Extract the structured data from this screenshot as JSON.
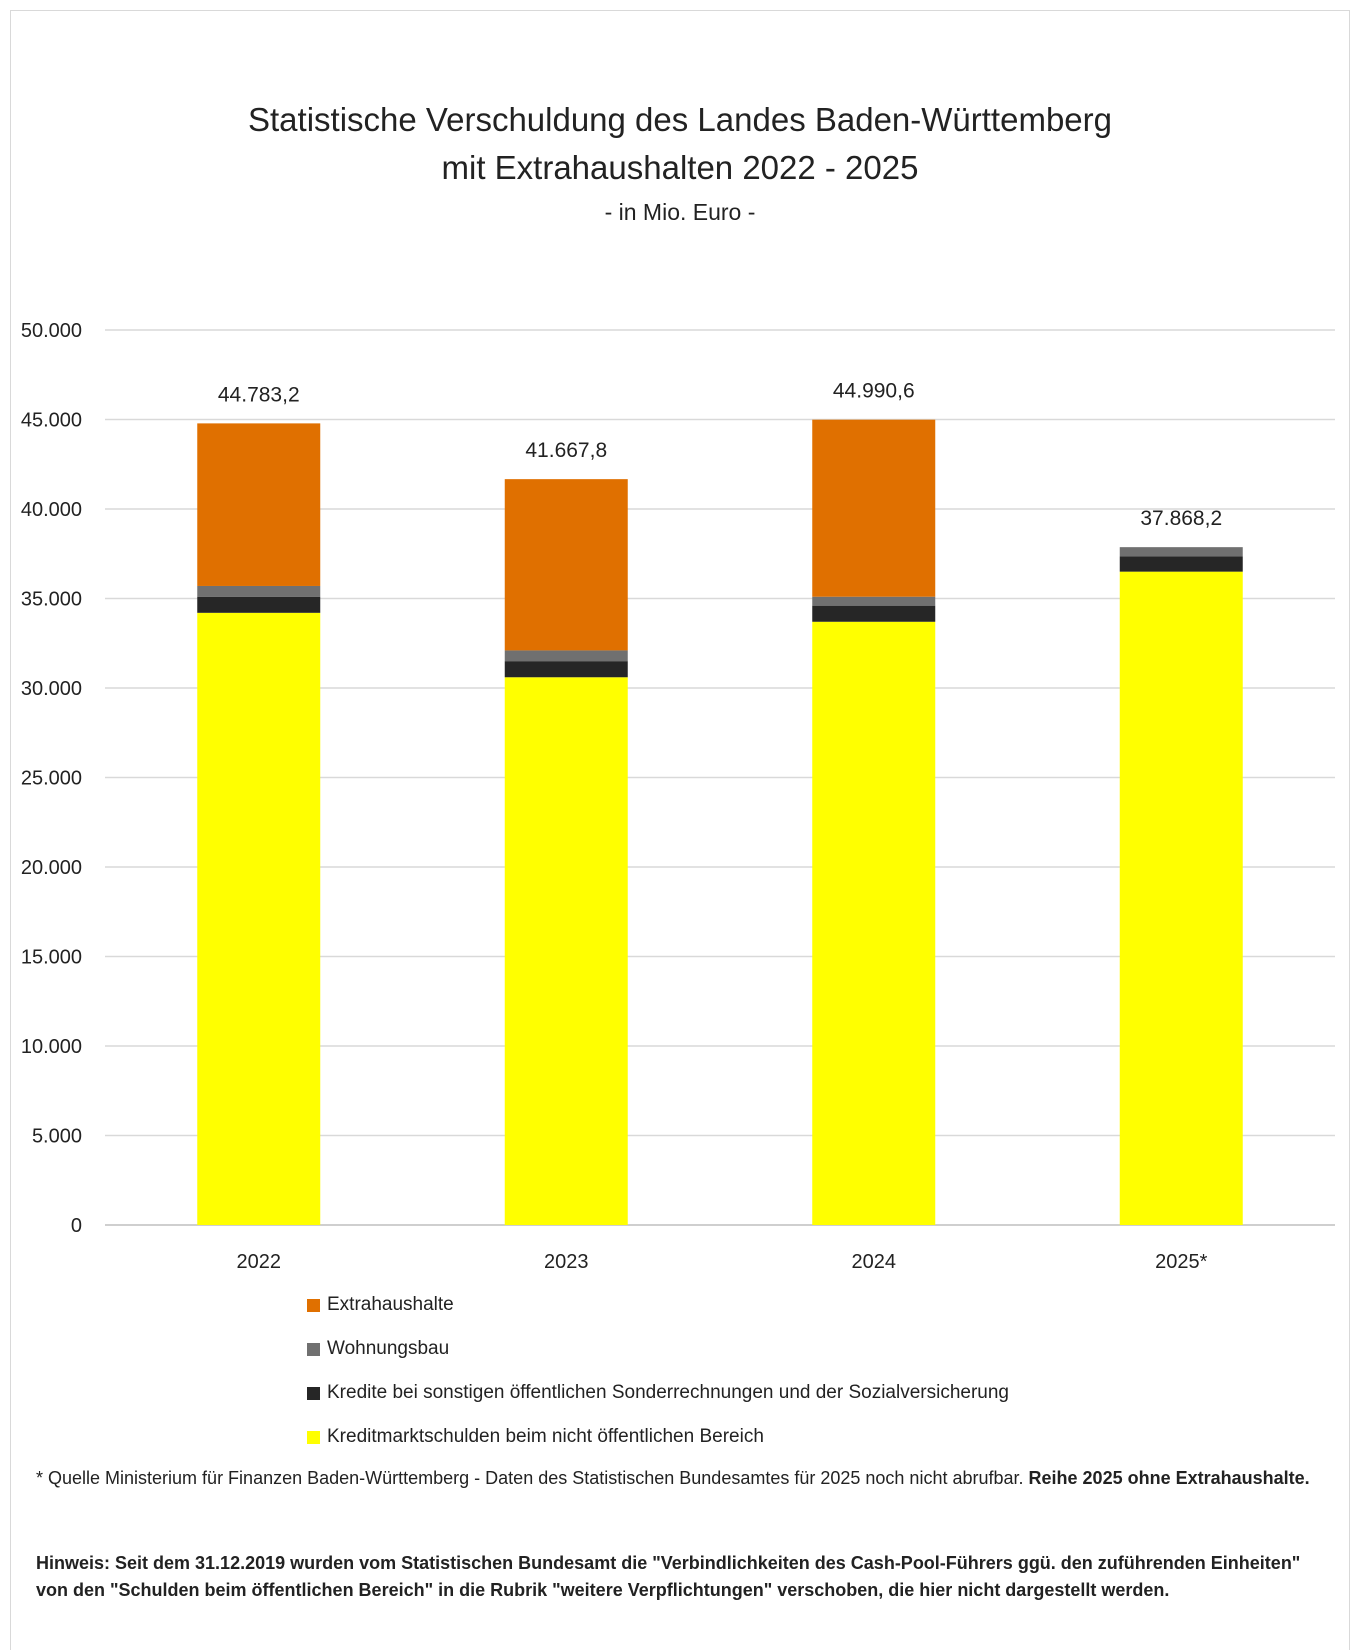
{
  "chart_data": {
    "type": "bar",
    "stacked": true,
    "title": [
      "Statistische Verschuldung des Landes Baden-Württemberg",
      "mit Extrahaushalten 2022 - 2025"
    ],
    "subtitle": "- in Mio. Euro -",
    "categories": [
      "2022",
      "2023",
      "2024",
      "2025*"
    ],
    "ylim": [
      0,
      50000
    ],
    "yticks": [
      0,
      5000,
      10000,
      15000,
      20000,
      25000,
      30000,
      35000,
      40000,
      45000,
      50000
    ],
    "ytick_labels": [
      "0",
      "5.000",
      "10.000",
      "15.000",
      "20.000",
      "25.000",
      "30.000",
      "35.000",
      "40.000",
      "45.000",
      "50.000"
    ],
    "grid": true,
    "legend_position": "bottom",
    "series": [
      {
        "name": "Kreditmarktschulden beim nicht öffentlichen Bereich",
        "color": "#ffff00",
        "values": [
          34200,
          30600,
          33700,
          36500
        ]
      },
      {
        "name": "Kredite bei sonstigen öffentlichen Sonderrechnungen und der Sozialversicherung",
        "color": "#262626",
        "values": [
          900,
          900,
          900,
          850
        ]
      },
      {
        "name": "Wohnungsbau",
        "color": "#707070",
        "values": [
          600,
          600,
          500,
          518.2
        ]
      },
      {
        "name": "Extrahaushalte",
        "color": "#e07000",
        "values": [
          9083.2,
          9567.8,
          9890.6,
          0
        ]
      }
    ],
    "totals": [
      44783.2,
      41667.8,
      44990.6,
      37868.2
    ],
    "total_labels": [
      "44.783,2",
      "41.667,8",
      "44.990,6",
      "37.868,2"
    ]
  },
  "legend_order": [
    3,
    2,
    1,
    0
  ],
  "footnotes": {
    "source_note": "* Quelle Ministerium für Finanzen Baden-Württemberg - Daten des Statistischen Bundesamtes für 2025 noch nicht abrufbar.",
    "source_note_bold": "Reihe 2025 ohne Extrahaushalte.",
    "hint": "Hinweis:  Seit dem 31.12.2019 wurden vom Statistischen Bundesamt die \"Verbindlichkeiten des Cash-Pool-Führers ggü. den zuführenden Einheiten\" von den \"Schulden beim öffentlichen Bereich\" in die Rubrik \"weitere Verpflichtungen\" verschoben, die hier nicht dargestellt werden."
  }
}
